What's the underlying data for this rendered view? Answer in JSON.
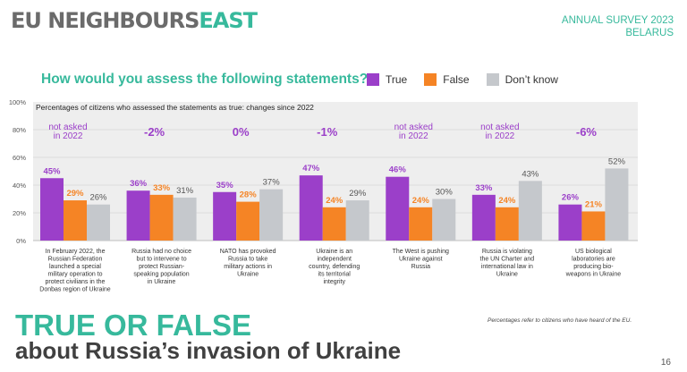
{
  "header": {
    "logo_main": "EU NEIGHBOURS",
    "logo_accent": "EAST",
    "survey_line1": "ANNUAL SURVEY 2023",
    "survey_line2": "BELARUS"
  },
  "question": "How would you assess the following statements?",
  "legend": [
    {
      "label": "True",
      "color": "#9b3fc9"
    },
    {
      "label": "False",
      "color": "#f58425"
    },
    {
      "label": "Don’t know",
      "color": "#c5c8cc"
    }
  ],
  "chart_data": {
    "type": "bar",
    "subtitle": "Percentages of citizens who assessed the statements as true: changes since 2022",
    "y_ticks": [
      "100%",
      "80%",
      "60%",
      "40%",
      "20%",
      "0%"
    ],
    "ylim": [
      0,
      100
    ],
    "grid": true,
    "categories": [
      [
        "In February 2022, the",
        "Russian Federation",
        "launched a special",
        "military operation to",
        "protect civilians in the",
        "Donbas region of Ukraine"
      ],
      [
        "Russia had no choice",
        "but to intervene to",
        "protect Russian-",
        "speaking population",
        "in Ukraine"
      ],
      [
        "NATO has provoked",
        "Russia to take",
        "military actions in",
        "Ukraine"
      ],
      [
        "Ukraine is an",
        "independent",
        "country, defending",
        "its territorial",
        "integrity"
      ],
      [
        "The West is pushing",
        "Ukraine against",
        "Russia"
      ],
      [
        "Russia is violating",
        "the UN Charter and",
        "international law in",
        "Ukraine"
      ],
      [
        "US biological",
        "laboratories are",
        "producing bio-",
        "weapons in Ukraine"
      ]
    ],
    "series": [
      {
        "name": "True",
        "color": "#9b3fc9",
        "values": [
          45,
          36,
          35,
          47,
          46,
          33,
          26
        ],
        "labels": [
          "45%",
          "36%",
          "35%",
          "47%",
          "46%",
          "33%",
          "26%"
        ]
      },
      {
        "name": "False",
        "color": "#f58425",
        "values": [
          29,
          33,
          28,
          24,
          24,
          24,
          21
        ],
        "labels": [
          "29%",
          "33%",
          "28%",
          "24%",
          "24%",
          "24%",
          "21%"
        ]
      },
      {
        "name": "Don’t know",
        "color": "#c5c8cc",
        "values": [
          26,
          31,
          37,
          29,
          30,
          43,
          52
        ],
        "labels": [
          "26%",
          "31%",
          "37%",
          "29%",
          "30%",
          "43%",
          "52%"
        ]
      }
    ],
    "changes": [
      "not asked\nin 2022",
      "-2%",
      "0%",
      "-1%",
      "not asked\nin 2022",
      "not asked\nin 2022",
      "-6%"
    ],
    "colors": {
      "panel": "#eeeeee",
      "change_text": "#9b3fc9",
      "grid": "#dcdcdc"
    }
  },
  "footer": {
    "title": "TRUE OR FALSE",
    "subtitle": "about Russia’s invasion of Ukraine",
    "footnote": "Percentages refer to citizens who have heard of the EU.",
    "page_number": "16"
  }
}
